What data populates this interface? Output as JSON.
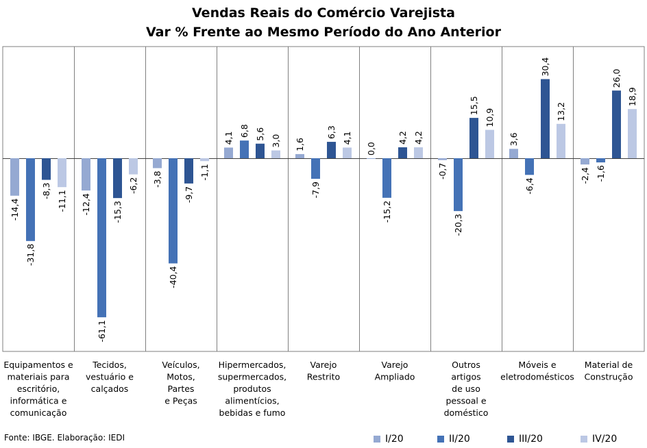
{
  "chart_data": {
    "type": "bar",
    "title": [
      "Vendas Reais do Comércio Varejista",
      "Var % Frente ao Mesmo Período do Ano Anterior"
    ],
    "categories": [
      [
        "Equipamentos e",
        "materiais para",
        "escritório,",
        "informática e",
        "comunicação"
      ],
      [
        "Tecidos,",
        "vestuário e",
        "calçados"
      ],
      [
        "Veículos,",
        "Motos,",
        "Partes",
        "e Peças"
      ],
      [
        "Hipermercados,",
        "supermercados,",
        "produtos",
        "alimentícios,",
        "bebidas e fumo"
      ],
      [
        "Varejo",
        "Restrito"
      ],
      [
        "Varejo",
        "Ampliado"
      ],
      [
        "Outros",
        "artigos",
        "de uso",
        "pessoal e",
        "doméstico"
      ],
      [
        "Móveis e",
        "eletrodomésticos"
      ],
      [
        "Material de",
        "Construção"
      ]
    ],
    "series": [
      {
        "name": "I/20",
        "color": "#95A9D2",
        "values": [
          -14.4,
          -12.4,
          -3.8,
          4.1,
          1.6,
          0.0,
          -0.7,
          3.6,
          -2.4
        ],
        "labels": [
          "-14,4",
          "-12,4",
          "-3,8",
          "4,1",
          "1,6",
          "0,0",
          "-0,7",
          "3,6",
          "-2,4"
        ]
      },
      {
        "name": "II/20",
        "color": "#4472B6",
        "values": [
          -31.8,
          -61.1,
          -40.4,
          6.8,
          -7.9,
          -15.2,
          -20.3,
          -6.4,
          -1.6
        ],
        "labels": [
          "-31,8",
          "-61,1",
          "-40,4",
          "6,8",
          "-7,9",
          "-15,2",
          "-20,3",
          "-6,4",
          "-1,6"
        ]
      },
      {
        "name": "III/20",
        "color": "#2E5593",
        "values": [
          -8.3,
          -15.3,
          -9.7,
          5.6,
          6.3,
          4.2,
          15.5,
          30.4,
          26.0
        ],
        "labels": [
          "-8,3",
          "-15,3",
          "-9,7",
          "5,6",
          "6,3",
          "4,2",
          "15,5",
          "30,4",
          "26,0"
        ]
      },
      {
        "name": "IV/20",
        "color": "#BCC8E4",
        "values": [
          -11.1,
          -6.2,
          -1.1,
          3.0,
          4.1,
          4.2,
          10.9,
          13.2,
          18.9
        ],
        "labels": [
          "-11,1",
          "-6,2",
          "-1,1",
          "3,0",
          "4,1",
          "4,2",
          "10,9",
          "13,2",
          "18,9"
        ]
      }
    ],
    "ylim": [
      -66,
      45
    ],
    "grid": false,
    "legend_position": "bottom-right"
  },
  "footer": {
    "source": "Fonte: IBGE. Elaboração: IEDI"
  }
}
